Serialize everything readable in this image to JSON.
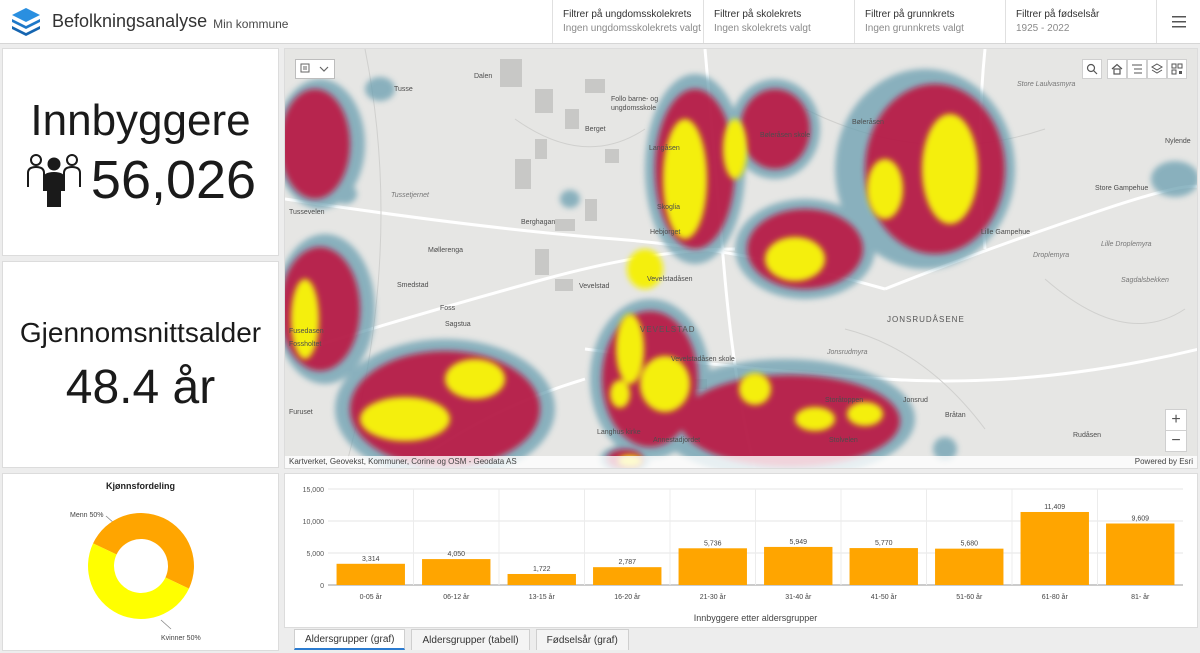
{
  "header": {
    "title": "Befolkningsanalyse",
    "subtitle": "Min kommune",
    "filters": [
      {
        "title": "Filtrer på ungdomsskolekrets",
        "subtitle": "Ingen ungdomsskolekrets valgt"
      },
      {
        "title": "Filtrer på skolekrets",
        "subtitle": "Ingen skolekrets valgt"
      },
      {
        "title": "Filtrer på grunnkrets",
        "subtitle": "Ingen grunnkrets valgt"
      },
      {
        "title": "Filtrer på fødselsår",
        "subtitle": "1925 - 2022"
      }
    ],
    "menu_icon": "hamburger-icon"
  },
  "kpi_population": {
    "title": "Innbyggere",
    "value": "56,026",
    "icon": "people-icon"
  },
  "kpi_age": {
    "title": "Gjennomsnittsalder",
    "value": "48.4 år"
  },
  "map": {
    "attribution": "Kartverket, Geovekst, Kommuner, Corine og OSM - Geodata AS",
    "powered_by": "Powered by Esri",
    "labels": [
      "Dalen",
      "Tusse",
      "Follo barne- og",
      "ungdomsskole",
      "Berget",
      "Langåsen",
      "Bøleråsen skole",
      "Bøleråsen",
      "Tussetjernet",
      "Skoglia",
      "Berghagan",
      "Hebjorget",
      "Tussevelen",
      "Møllerenga",
      "Smedstad",
      "Foss",
      "Sagstua",
      "Vevelstadåsen",
      "Vevelstad",
      "VEVELSTAD",
      "Vevelstadåsen skole",
      "Storåtoppen",
      "Furuset",
      "Langhus kirke",
      "Annestadjordet",
      "Store Gampehue",
      "Lille Gampehue",
      "Lille Droplemyra",
      "Droplemyra",
      "JONSRUDÅSENE",
      "Jonsrudmyra",
      "Jonsrud",
      "Bråtan",
      "Rudåsen",
      "Sagdalsbekken",
      "Store Laulvasmyra",
      "Nylende",
      "Fossholtet",
      "Fusedasen",
      "Stolvelen"
    ],
    "tool_icons": [
      "search-icon",
      "home-icon",
      "list-icon",
      "layers-icon",
      "qr-icon"
    ],
    "legend_icon": "legend-icon",
    "zoom_in": "+",
    "zoom_out": "−"
  },
  "donut": {
    "title": "Kjønnsfordeling",
    "men_label": "Menn 50%",
    "women_label": "Kvinner 50%",
    "colors": {
      "men": "#FFA500",
      "women": "#FFFF00"
    }
  },
  "chart_data": {
    "type": "bar",
    "categories": [
      "0-05 år",
      "06-12 år",
      "13-15 år",
      "16-20 år",
      "21-30 år",
      "31-40 år",
      "41-50 år",
      "51-60 år",
      "61-80 år",
      "81- år"
    ],
    "values": [
      3314,
      4050,
      1722,
      2787,
      5736,
      5949,
      5770,
      5680,
      11409,
      9609
    ],
    "value_labels": [
      "3,314",
      "4,050",
      "1,722",
      "2,787",
      "5,736",
      "5,949",
      "5,770",
      "5,680",
      "11,409",
      "9,609"
    ],
    "ylim": [
      0,
      15000
    ],
    "yticks": [
      "0",
      "5,000",
      "10,000",
      "15,000"
    ],
    "xlabel": "Innbyggere etter aldersgrupper",
    "bar_color": "#FFA500",
    "grid": true
  },
  "tabs": [
    "Aldersgrupper (graf)",
    "Aldersgrupper (tabell)",
    "Fødselsår (graf)"
  ]
}
